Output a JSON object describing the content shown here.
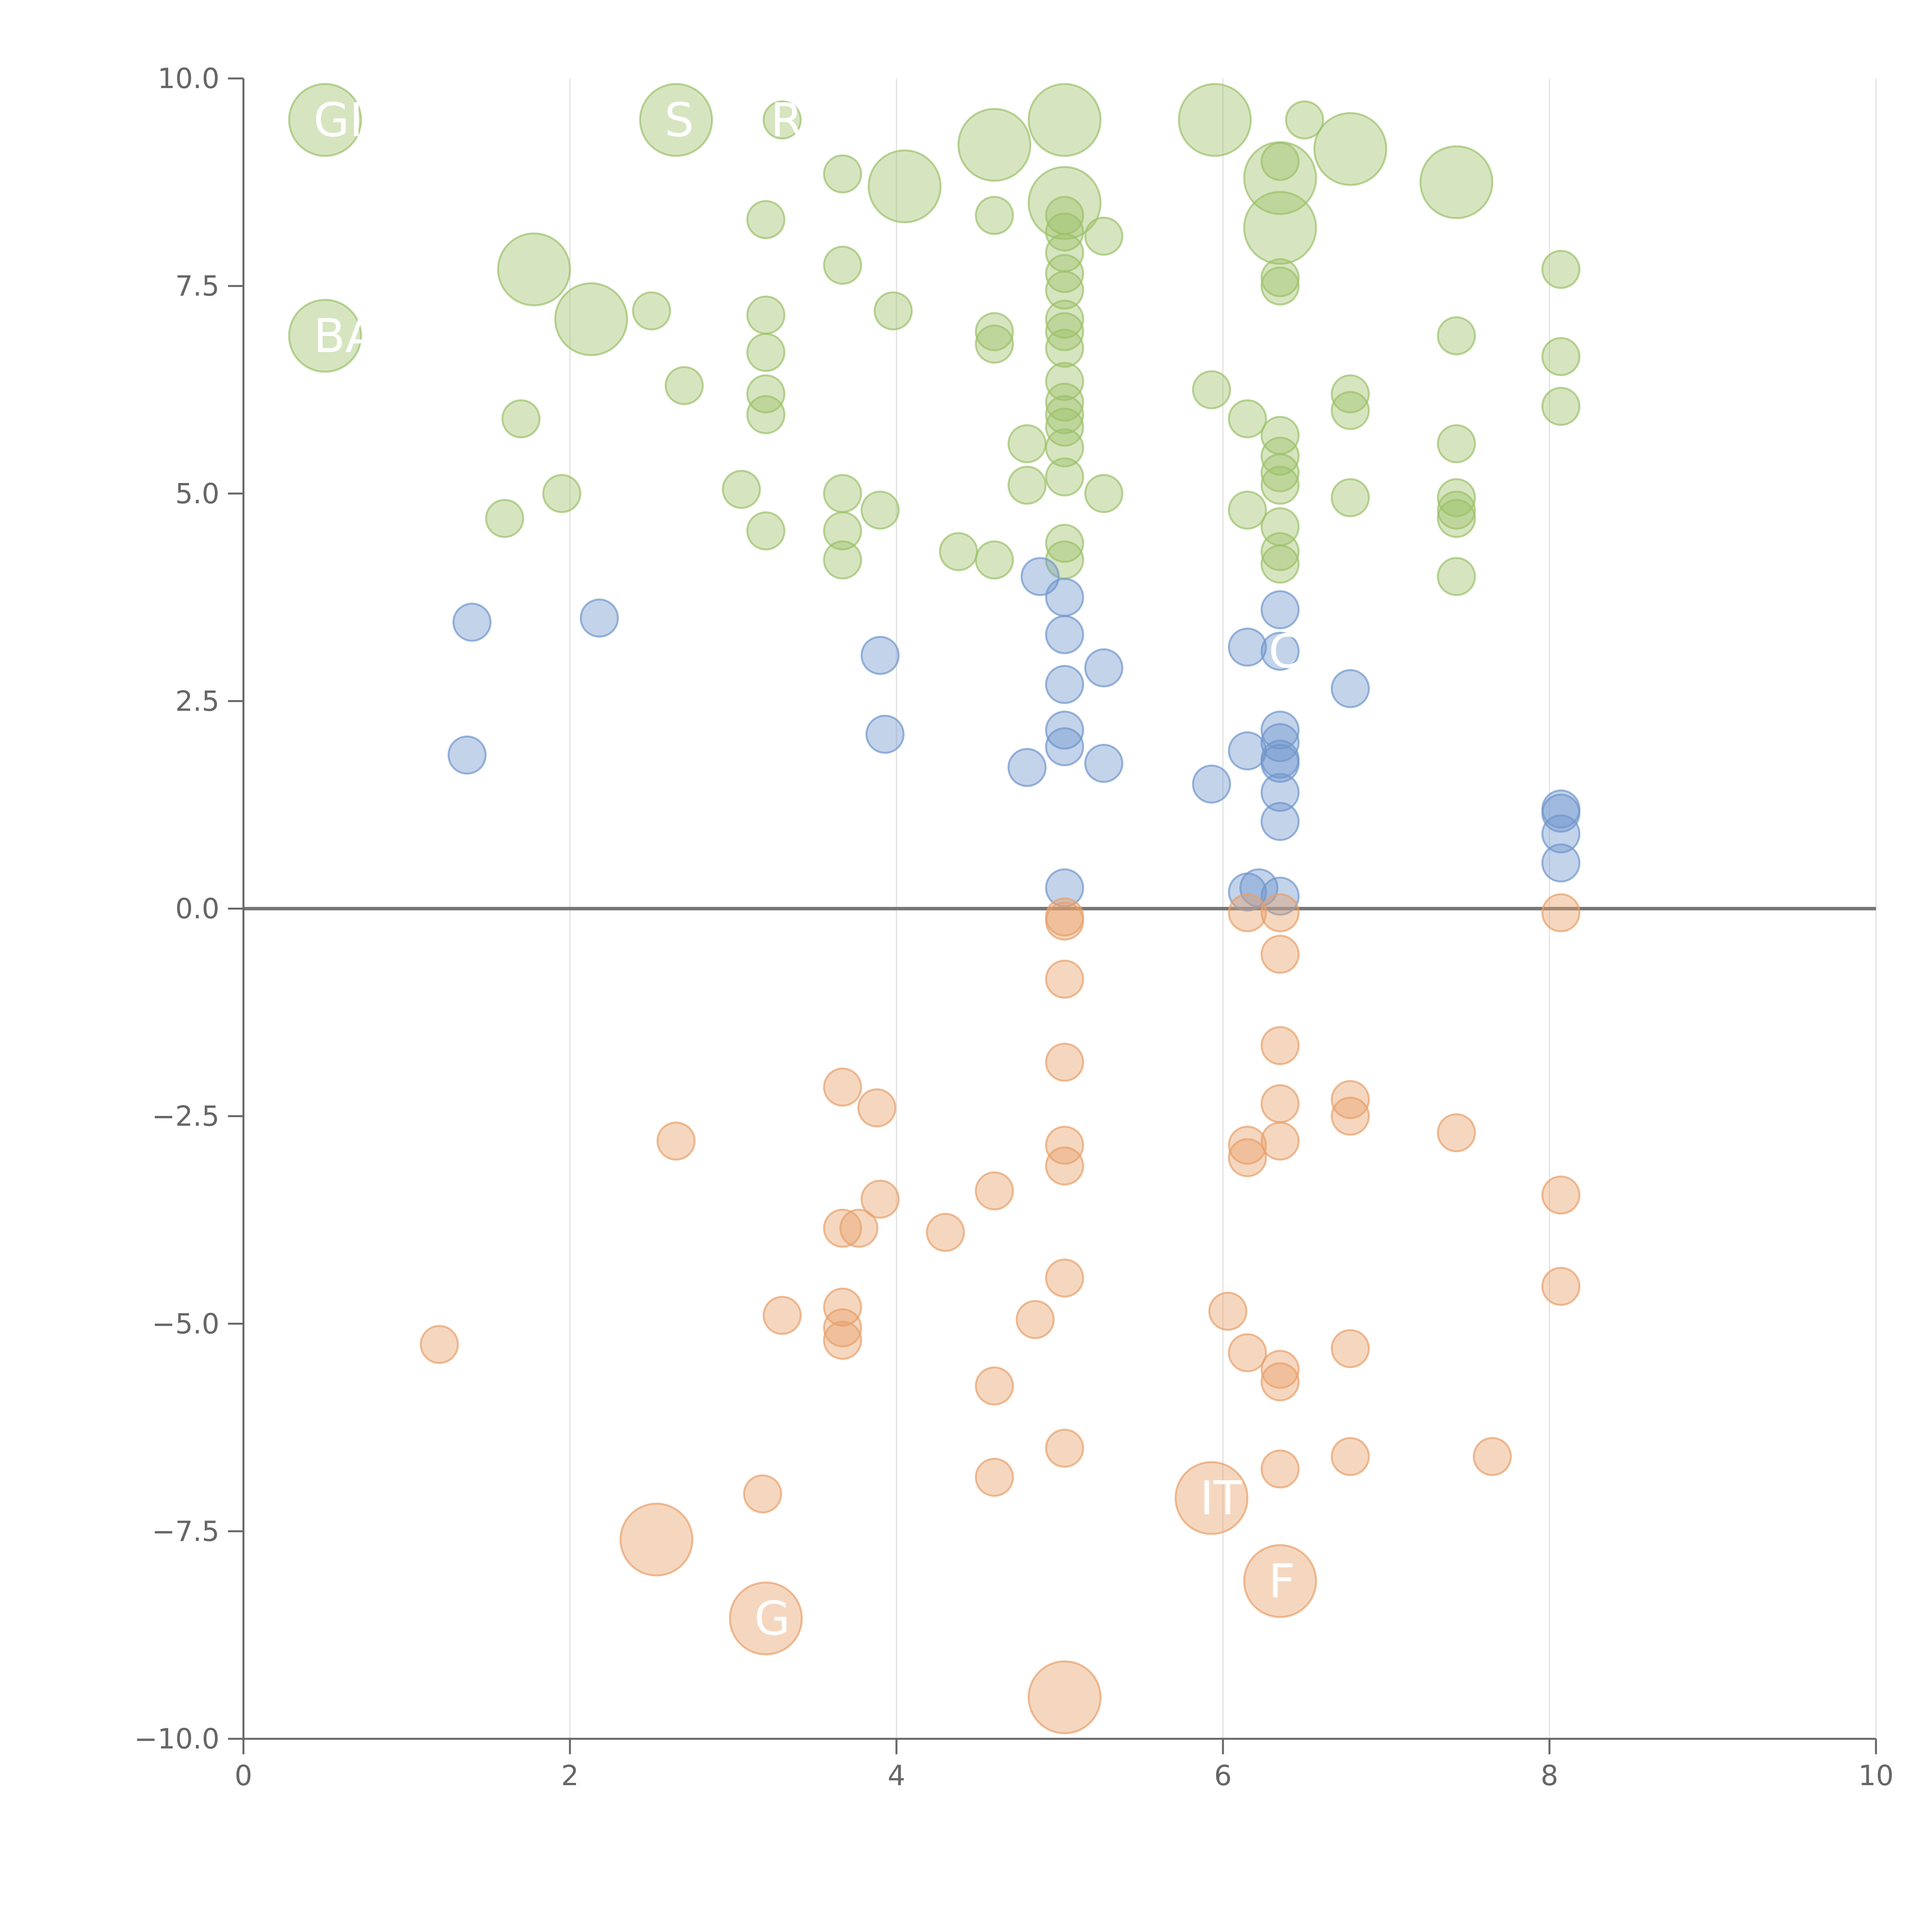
{
  "chart_data": {
    "type": "scatter",
    "title": "",
    "xlabel": "",
    "ylabel": "",
    "xlim": [
      0,
      10
    ],
    "ylim": [
      -10,
      10
    ],
    "x_ticks": [
      0,
      2,
      4,
      6,
      8,
      10
    ],
    "y_ticks": [
      10.0,
      7.5,
      5.0,
      2.5,
      0.0,
      -2.5,
      -5.0,
      -7.5,
      -10.0
    ],
    "x_tick_labels": [
      "0",
      "2",
      "4",
      "6",
      "8",
      "10"
    ],
    "y_tick_labels": [
      "10.0",
      "7.5",
      "5.0",
      "2.5",
      "0.0",
      "−2.5",
      "−5.0",
      "−7.5",
      "−10.0"
    ],
    "grid": "vertical lines at x ticks",
    "reference_line_y": 0,
    "colors": {
      "green": "#9dc06a",
      "blue": "#6f96cc",
      "orange": "#e8a06a",
      "axis": "#666666",
      "grid": "#e0e0e0",
      "zero_line": "#777777"
    },
    "series": [
      {
        "name": "green",
        "color": "#9dc06a",
        "points": [
          {
            "x": 0.5,
            "y": 9.5,
            "size": "large",
            "label": "GI"
          },
          {
            "x": 0.5,
            "y": 6.9,
            "size": "large",
            "label": "BA"
          },
          {
            "x": 1.78,
            "y": 7.7,
            "size": "large"
          },
          {
            "x": 2.13,
            "y": 7.1,
            "size": "large"
          },
          {
            "x": 2.65,
            "y": 9.5,
            "size": "large",
            "label": "S"
          },
          {
            "x": 3.3,
            "y": 9.5,
            "label": "R"
          },
          {
            "x": 4.05,
            "y": 8.7,
            "size": "large"
          },
          {
            "x": 4.6,
            "y": 9.2,
            "size": "large"
          },
          {
            "x": 5.03,
            "y": 9.5,
            "size": "large"
          },
          {
            "x": 5.03,
            "y": 8.5,
            "size": "large"
          },
          {
            "x": 5.95,
            "y": 9.5,
            "size": "large"
          },
          {
            "x": 6.35,
            "y": 8.8,
            "size": "large"
          },
          {
            "x": 6.35,
            "y": 8.2,
            "size": "large"
          },
          {
            "x": 6.78,
            "y": 9.15,
            "size": "large"
          },
          {
            "x": 7.43,
            "y": 8.75,
            "size": "large"
          },
          {
            "x": 6.5,
            "y": 9.5
          },
          {
            "x": 1.7,
            "y": 5.9
          },
          {
            "x": 1.6,
            "y": 4.7
          },
          {
            "x": 1.95,
            "y": 5.0
          },
          {
            "x": 2.5,
            "y": 7.2
          },
          {
            "x": 2.7,
            "y": 6.3
          },
          {
            "x": 3.05,
            "y": 5.05
          },
          {
            "x": 3.2,
            "y": 8.3
          },
          {
            "x": 3.2,
            "y": 7.15
          },
          {
            "x": 3.2,
            "y": 6.7
          },
          {
            "x": 3.2,
            "y": 6.2
          },
          {
            "x": 3.2,
            "y": 5.95
          },
          {
            "x": 3.2,
            "y": 4.55
          },
          {
            "x": 3.67,
            "y": 8.85
          },
          {
            "x": 3.67,
            "y": 7.75
          },
          {
            "x": 3.67,
            "y": 5.0
          },
          {
            "x": 3.67,
            "y": 4.55
          },
          {
            "x": 3.67,
            "y": 4.2
          },
          {
            "x": 3.9,
            "y": 4.8
          },
          {
            "x": 3.98,
            "y": 7.2
          },
          {
            "x": 4.38,
            "y": 4.3
          },
          {
            "x": 4.6,
            "y": 8.35
          },
          {
            "x": 4.6,
            "y": 6.95
          },
          {
            "x": 4.6,
            "y": 6.8
          },
          {
            "x": 4.6,
            "y": 4.2
          },
          {
            "x": 4.8,
            "y": 5.6
          },
          {
            "x": 4.8,
            "y": 5.1
          },
          {
            "x": 5.03,
            "y": 8.35
          },
          {
            "x": 5.03,
            "y": 8.15
          },
          {
            "x": 5.03,
            "y": 7.9
          },
          {
            "x": 5.03,
            "y": 7.65
          },
          {
            "x": 5.03,
            "y": 7.45
          },
          {
            "x": 5.03,
            "y": 7.1
          },
          {
            "x": 5.03,
            "y": 6.95
          },
          {
            "x": 5.03,
            "y": 6.75
          },
          {
            "x": 5.03,
            "y": 6.35
          },
          {
            "x": 5.03,
            "y": 6.1
          },
          {
            "x": 5.03,
            "y": 5.95
          },
          {
            "x": 5.03,
            "y": 5.8
          },
          {
            "x": 5.03,
            "y": 5.55
          },
          {
            "x": 5.03,
            "y": 5.2
          },
          {
            "x": 5.03,
            "y": 4.4
          },
          {
            "x": 5.03,
            "y": 4.2
          },
          {
            "x": 5.27,
            "y": 8.1
          },
          {
            "x": 5.27,
            "y": 5.0
          },
          {
            "x": 5.93,
            "y": 6.25
          },
          {
            "x": 6.15,
            "y": 5.9
          },
          {
            "x": 6.15,
            "y": 4.8
          },
          {
            "x": 6.35,
            "y": 9.0
          },
          {
            "x": 6.35,
            "y": 7.6
          },
          {
            "x": 6.35,
            "y": 7.5
          },
          {
            "x": 6.35,
            "y": 5.7
          },
          {
            "x": 6.35,
            "y": 5.45
          },
          {
            "x": 6.35,
            "y": 5.25
          },
          {
            "x": 6.35,
            "y": 5.1
          },
          {
            "x": 6.35,
            "y": 4.6
          },
          {
            "x": 6.35,
            "y": 4.3
          },
          {
            "x": 6.35,
            "y": 4.15
          },
          {
            "x": 6.78,
            "y": 6.2
          },
          {
            "x": 6.78,
            "y": 6.0
          },
          {
            "x": 6.78,
            "y": 4.95
          },
          {
            "x": 7.43,
            "y": 6.9
          },
          {
            "x": 7.43,
            "y": 5.6
          },
          {
            "x": 7.43,
            "y": 4.95
          },
          {
            "x": 7.43,
            "y": 4.8
          },
          {
            "x": 7.43,
            "y": 4.7
          },
          {
            "x": 7.43,
            "y": 4.0
          },
          {
            "x": 8.07,
            "y": 7.7
          },
          {
            "x": 8.07,
            "y": 6.65
          },
          {
            "x": 8.07,
            "y": 6.05
          }
        ]
      },
      {
        "name": "blue",
        "color": "#6f96cc",
        "points": [
          {
            "x": 1.4,
            "y": 3.45
          },
          {
            "x": 1.37,
            "y": 1.85
          },
          {
            "x": 2.18,
            "y": 3.5
          },
          {
            "x": 3.9,
            "y": 3.05
          },
          {
            "x": 3.93,
            "y": 2.1
          },
          {
            "x": 4.8,
            "y": 1.7
          },
          {
            "x": 4.88,
            "y": 4.0
          },
          {
            "x": 5.03,
            "y": 3.75
          },
          {
            "x": 5.03,
            "y": 3.3
          },
          {
            "x": 5.03,
            "y": 2.7
          },
          {
            "x": 5.03,
            "y": 2.15
          },
          {
            "x": 5.03,
            "y": 1.95
          },
          {
            "x": 5.03,
            "y": 0.25
          },
          {
            "x": 5.27,
            "y": 2.9
          },
          {
            "x": 5.27,
            "y": 1.75
          },
          {
            "x": 5.93,
            "y": 1.5
          },
          {
            "x": 6.15,
            "y": 3.15
          },
          {
            "x": 6.15,
            "y": 1.9
          },
          {
            "x": 6.15,
            "y": 0.2
          },
          {
            "x": 6.22,
            "y": 0.25
          },
          {
            "x": 6.35,
            "y": 3.6
          },
          {
            "x": 6.35,
            "y": 3.1,
            "label": "C"
          },
          {
            "x": 6.35,
            "y": 2.15
          },
          {
            "x": 6.35,
            "y": 2.0
          },
          {
            "x": 6.35,
            "y": 1.8
          },
          {
            "x": 6.35,
            "y": 1.75
          },
          {
            "x": 6.35,
            "y": 1.4
          },
          {
            "x": 6.35,
            "y": 1.05
          },
          {
            "x": 6.35,
            "y": 0.15
          },
          {
            "x": 6.78,
            "y": 2.65
          },
          {
            "x": 8.07,
            "y": 1.2
          },
          {
            "x": 8.07,
            "y": 1.15
          },
          {
            "x": 8.07,
            "y": 0.9
          },
          {
            "x": 8.07,
            "y": 0.55
          }
        ]
      },
      {
        "name": "orange",
        "color": "#e8a06a",
        "points": [
          {
            "x": 1.2,
            "y": -5.25
          },
          {
            "x": 2.65,
            "y": -2.8
          },
          {
            "x": 2.53,
            "y": -7.6,
            "size": "large"
          },
          {
            "x": 3.2,
            "y": -8.55,
            "size": "large",
            "label": "G"
          },
          {
            "x": 3.18,
            "y": -7.05
          },
          {
            "x": 3.3,
            "y": -4.9
          },
          {
            "x": 3.67,
            "y": -2.15
          },
          {
            "x": 3.67,
            "y": -3.85
          },
          {
            "x": 3.67,
            "y": -4.8
          },
          {
            "x": 3.67,
            "y": -5.05
          },
          {
            "x": 3.67,
            "y": -5.2
          },
          {
            "x": 3.77,
            "y": -3.85
          },
          {
            "x": 3.88,
            "y": -2.4
          },
          {
            "x": 3.9,
            "y": -3.5
          },
          {
            "x": 4.3,
            "y": -3.9
          },
          {
            "x": 4.6,
            "y": -3.4
          },
          {
            "x": 4.6,
            "y": -5.75
          },
          {
            "x": 4.6,
            "y": -6.85
          },
          {
            "x": 4.85,
            "y": -4.95
          },
          {
            "x": 5.03,
            "y": -0.1
          },
          {
            "x": 5.03,
            "y": -0.15
          },
          {
            "x": 5.03,
            "y": -0.85
          },
          {
            "x": 5.03,
            "y": -1.85
          },
          {
            "x": 5.03,
            "y": -2.85
          },
          {
            "x": 5.03,
            "y": -3.1
          },
          {
            "x": 5.03,
            "y": -4.45
          },
          {
            "x": 5.03,
            "y": -6.5
          },
          {
            "x": 5.03,
            "y": -9.5,
            "size": "large"
          },
          {
            "x": 5.93,
            "y": -7.1,
            "size": "large",
            "label": "IT"
          },
          {
            "x": 6.03,
            "y": -4.85
          },
          {
            "x": 6.15,
            "y": -0.05
          },
          {
            "x": 6.15,
            "y": -2.85
          },
          {
            "x": 6.15,
            "y": -3.0
          },
          {
            "x": 6.15,
            "y": -5.35
          },
          {
            "x": 6.35,
            "y": -0.05
          },
          {
            "x": 6.35,
            "y": -0.55
          },
          {
            "x": 6.35,
            "y": -1.65
          },
          {
            "x": 6.35,
            "y": -2.35
          },
          {
            "x": 6.35,
            "y": -2.8
          },
          {
            "x": 6.35,
            "y": -5.55
          },
          {
            "x": 6.35,
            "y": -5.7
          },
          {
            "x": 6.35,
            "y": -6.75
          },
          {
            "x": 6.35,
            "y": -8.1,
            "size": "large",
            "label": "F"
          },
          {
            "x": 6.78,
            "y": -2.3
          },
          {
            "x": 6.78,
            "y": -2.5
          },
          {
            "x": 6.78,
            "y": -5.3
          },
          {
            "x": 6.78,
            "y": -6.6
          },
          {
            "x": 7.43,
            "y": -2.7
          },
          {
            "x": 7.65,
            "y": -6.6
          },
          {
            "x": 8.07,
            "y": -0.05
          },
          {
            "x": 8.07,
            "y": -3.45
          },
          {
            "x": 8.07,
            "y": -4.55
          }
        ]
      }
    ]
  }
}
